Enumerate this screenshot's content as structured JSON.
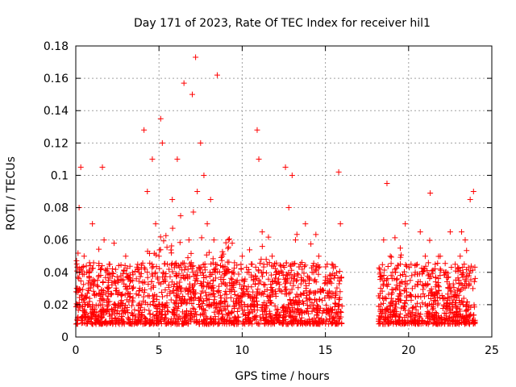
{
  "chart_data": {
    "type": "scatter",
    "title": "Day 171 of 2023, Rate Of TEC Index for receiver hil1",
    "xlabel": "GPS time / hours",
    "ylabel": "ROTI / TECUs",
    "xlim": [
      0,
      25
    ],
    "ylim": [
      0,
      0.18
    ],
    "xticks": [
      "0",
      "5",
      "10",
      "15",
      "20",
      "25"
    ],
    "yticks": [
      "0",
      "0.02",
      "0.04",
      "0.06",
      "0.08",
      "0.1",
      "0.12",
      "0.14",
      "0.16",
      "0.18"
    ],
    "grid": true,
    "marker": "plus",
    "color": "#ff0000",
    "data_gap": [
      16.0,
      18.2
    ],
    "series": [
      {
        "name": "ROTI hil1",
        "x": [
          0.1,
          0.2,
          0.3,
          0.5,
          0.8,
          1.0,
          1.3,
          1.6,
          1.7,
          2.0,
          2.3,
          2.6,
          3.0,
          3.4,
          3.8,
          4.1,
          4.3,
          4.6,
          4.8,
          5.0,
          5.1,
          5.2,
          5.5,
          5.8,
          6.1,
          6.3,
          6.5,
          6.8,
          7.0,
          7.2,
          7.3,
          7.5,
          7.7,
          7.9,
          8.1,
          8.3,
          8.5,
          8.8,
          9.1,
          9.4,
          9.7,
          10.0,
          10.3,
          10.6,
          10.9,
          11.0,
          11.2,
          11.5,
          11.8,
          12.2,
          12.6,
          12.8,
          13.0,
          13.2,
          13.5,
          13.8,
          14.2,
          14.6,
          15.0,
          15.4,
          15.8,
          15.9,
          18.3,
          18.5,
          18.7,
          18.9,
          19.2,
          19.5,
          19.8,
          20.1,
          20.4,
          20.7,
          21.0,
          21.3,
          21.6,
          21.9,
          22.2,
          22.5,
          22.8,
          23.1,
          23.4,
          23.7,
          23.9
        ],
        "y": [
          0.03,
          0.08,
          0.105,
          0.05,
          0.04,
          0.07,
          0.035,
          0.105,
          0.06,
          0.045,
          0.058,
          0.035,
          0.05,
          0.03,
          0.04,
          0.128,
          0.09,
          0.11,
          0.07,
          0.05,
          0.135,
          0.12,
          0.045,
          0.085,
          0.11,
          0.075,
          0.157,
          0.06,
          0.15,
          0.173,
          0.09,
          0.12,
          0.1,
          0.07,
          0.085,
          0.06,
          0.162,
          0.05,
          0.04,
          0.058,
          0.035,
          0.05,
          0.04,
          0.045,
          0.128,
          0.11,
          0.065,
          0.045,
          0.05,
          0.04,
          0.105,
          0.08,
          0.1,
          0.06,
          0.045,
          0.07,
          0.04,
          0.05,
          0.035,
          0.045,
          0.102,
          0.07,
          0.04,
          0.06,
          0.095,
          0.05,
          0.04,
          0.055,
          0.07,
          0.035,
          0.04,
          0.065,
          0.05,
          0.089,
          0.045,
          0.05,
          0.04,
          0.065,
          0.045,
          0.05,
          0.06,
          0.085,
          0.09
        ]
      }
    ]
  }
}
